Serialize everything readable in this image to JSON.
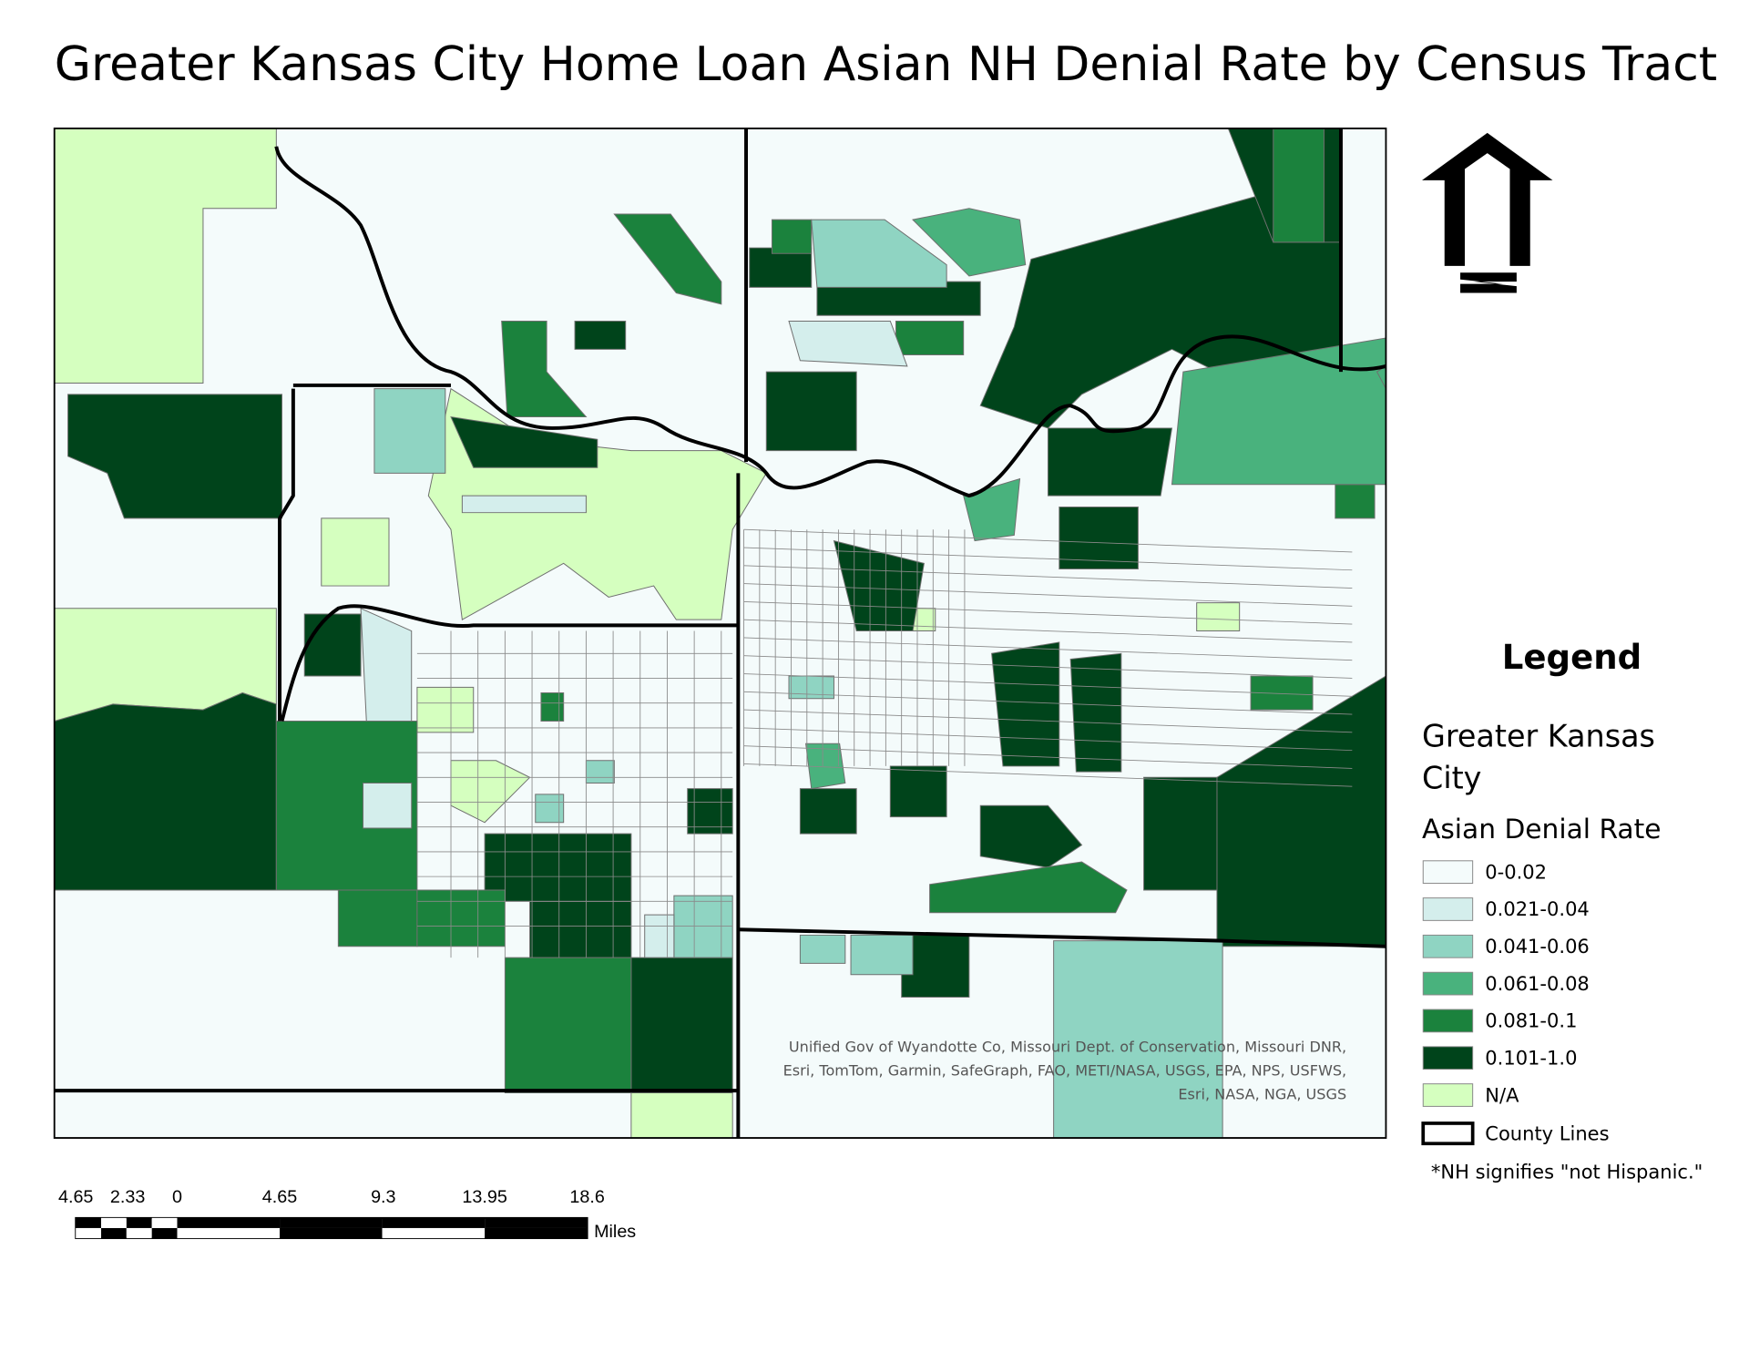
{
  "title": "Greater Kansas City Home Loan Asian NH Denial Rate by Census Tract",
  "legend": {
    "heading": "Legend",
    "layer_lines": [
      "Greater Kansas",
      "City"
    ],
    "field": "Asian Denial Rate",
    "items": [
      {
        "label": "0-0.02",
        "color": "#f4fbfb"
      },
      {
        "label": "0.021-0.04",
        "color": "#d4eeec"
      },
      {
        "label": "0.041-0.06",
        "color": "#8fd4c2"
      },
      {
        "label": "0.061-0.08",
        "color": "#49b27d"
      },
      {
        "label": "0.081-0.1",
        "color": "#1b823d"
      },
      {
        "label": "0.101-1.0",
        "color": "#00441b"
      },
      {
        "label": "N/A",
        "color": "#d5ffbf"
      }
    ],
    "county_lines": "County Lines",
    "note": "*NH signifies \"not Hispanic.\""
  },
  "attribution": [
    "Unified Gov of Wyandotte Co, Missouri Dept. of Conservation, Missouri DNR,",
    "Esri, TomTom, Garmin, SafeGraph, FAO, METI/NASA, USGS, EPA, NPS, USFWS,",
    "Esri, NASA, NGA, USGS"
  ],
  "scale_bar": {
    "labels": [
      "4.65",
      "2.33",
      "0",
      "4.65",
      "9.3",
      "13.95",
      "18.6"
    ],
    "unit": "Miles"
  }
}
